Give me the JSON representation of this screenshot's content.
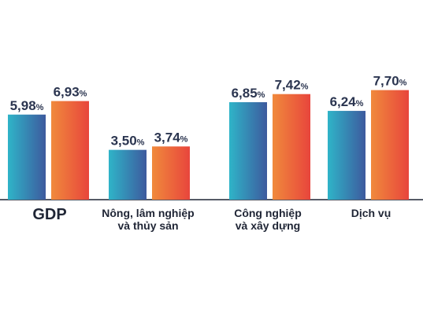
{
  "chart_data": {
    "type": "bar",
    "categories": [
      [
        "GDP"
      ],
      [
        "Nông, lâm nghiệp",
        "và thủy sản"
      ],
      [
        "Công nghiệp",
        "và xây dựng"
      ],
      [
        "Dịch vụ"
      ]
    ],
    "series": [
      {
        "values": [
          5.98,
          3.5,
          6.85,
          6.24
        ],
        "labels": [
          "5,98",
          "3,50",
          "6,85",
          "6,24"
        ],
        "color_top": "#2fb4c8",
        "color_bottom": "#3d5a9e"
      },
      {
        "values": [
          6.93,
          3.74,
          7.42,
          7.7
        ],
        "labels": [
          "6,93",
          "3,74",
          "7,42",
          "7,70"
        ],
        "color_top": "#f08a3c",
        "color_bottom": "#e8453c"
      }
    ],
    "unit_suffix": "%",
    "ylim": [
      0,
      9
    ],
    "grid": false
  }
}
